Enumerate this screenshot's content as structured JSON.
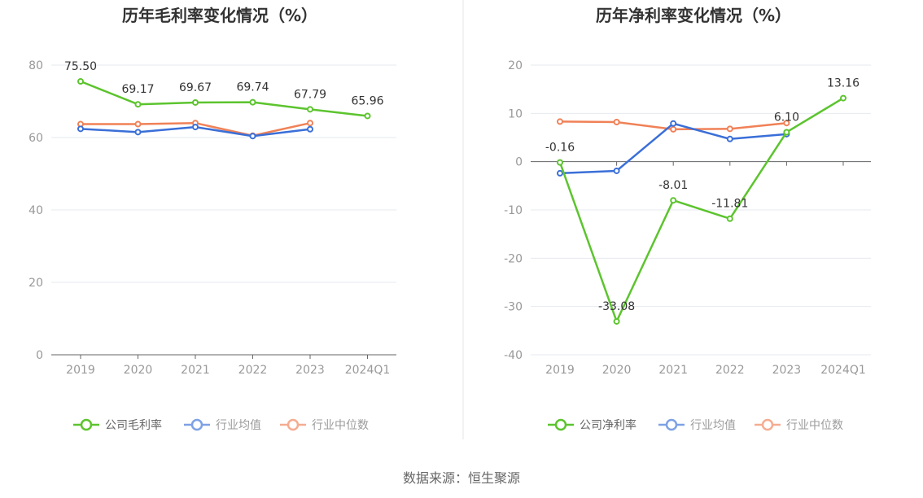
{
  "colors": {
    "company": "#5cc42e",
    "industry_avg": "#3a6fd8",
    "industry_median": "#f08157",
    "grid": "#e6e9ef",
    "axis": "#666666",
    "divider": "#e5e5e5"
  },
  "legend": {
    "company_gross": "公司毛利率",
    "company_net": "公司净利率",
    "industry_avg": "行业均值",
    "industry_median": "行业中位数"
  },
  "source_text": "数据来源：恒生聚源",
  "chart_data": [
    {
      "type": "line",
      "title": "历年毛利率变化情况（%）",
      "categories": [
        "2019",
        "2020",
        "2021",
        "2022",
        "2023",
        "2024Q1"
      ],
      "ylim": [
        0,
        80
      ],
      "yticks": [
        0,
        20,
        40,
        60,
        80
      ],
      "grid": true,
      "legend_position": "bottom",
      "series": [
        {
          "name": "公司毛利率",
          "color_key": "company",
          "values": [
            75.5,
            69.17,
            69.67,
            69.74,
            67.79,
            65.96
          ],
          "labels": [
            "75.50",
            "69.17",
            "69.67",
            "69.74",
            "67.79",
            "65.96"
          ]
        },
        {
          "name": "行业均值",
          "color_key": "industry_avg",
          "values": [
            62.4,
            61.5,
            62.9,
            60.4,
            62.3,
            null
          ]
        },
        {
          "name": "行业中位数",
          "color_key": "industry_median",
          "values": [
            63.7,
            63.7,
            64.0,
            60.5,
            64.0,
            null
          ]
        }
      ]
    },
    {
      "type": "line",
      "title": "历年净利率变化情况（%）",
      "categories": [
        "2019",
        "2020",
        "2021",
        "2022",
        "2023",
        "2024Q1"
      ],
      "ylim": [
        -40,
        20
      ],
      "yticks": [
        -40,
        -30,
        -20,
        -10,
        0,
        10,
        20
      ],
      "grid": true,
      "legend_position": "bottom",
      "series": [
        {
          "name": "公司净利率",
          "color_key": "company",
          "values": [
            -0.16,
            -33.08,
            -8.01,
            -11.81,
            6.1,
            13.16
          ],
          "labels": [
            "-0.16",
            "-33.08",
            "-8.01",
            "-11.81",
            "6.10",
            "13.16"
          ]
        },
        {
          "name": "行业均值",
          "color_key": "industry_avg",
          "values": [
            -2.4,
            -1.9,
            7.9,
            4.7,
            5.7,
            null
          ]
        },
        {
          "name": "行业中位数",
          "color_key": "industry_median",
          "values": [
            8.3,
            8.2,
            6.7,
            6.8,
            8.0,
            null
          ]
        }
      ]
    }
  ]
}
